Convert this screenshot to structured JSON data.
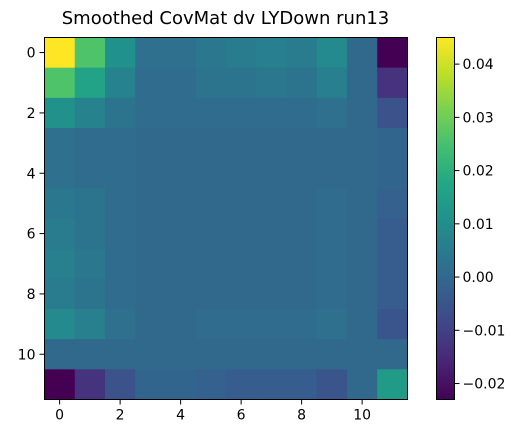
{
  "chart_data": {
    "type": "heatmap",
    "title": "Smoothed CovMat dv LYDown run13",
    "xlabel": "",
    "ylabel": "",
    "x_ticks": [
      "0",
      "2",
      "4",
      "6",
      "8",
      "10"
    ],
    "y_ticks": [
      "0",
      "2",
      "4",
      "6",
      "8",
      "10"
    ],
    "colorbar_ticks": [
      "0.04",
      "0.03",
      "0.02",
      "0.01",
      "0.00",
      "−0.01",
      "−0.02"
    ],
    "colorbar_tick_values": [
      0.04,
      0.03,
      0.02,
      0.01,
      0.0,
      -0.01,
      -0.02
    ],
    "vmin": -0.023,
    "vmax": 0.045,
    "colormap": "viridis",
    "matrix": [
      [
        0.045,
        0.026,
        0.011,
        0.002,
        0.002,
        0.004,
        0.005,
        0.006,
        0.005,
        0.009,
        0.0,
        -0.023
      ],
      [
        0.026,
        0.016,
        0.007,
        0.001,
        0.001,
        0.003,
        0.003,
        0.004,
        0.003,
        0.006,
        0.0,
        -0.013
      ],
      [
        0.011,
        0.007,
        0.003,
        0.001,
        0.001,
        0.001,
        0.001,
        0.001,
        0.001,
        0.002,
        0.0,
        -0.006
      ],
      [
        0.002,
        0.001,
        0.001,
        0.0,
        0.0,
        0.0,
        0.0,
        0.0,
        0.0,
        0.0,
        0.0,
        -0.001
      ],
      [
        0.002,
        0.001,
        0.001,
        0.0,
        0.0,
        0.0,
        0.0,
        0.0,
        0.0,
        0.0,
        0.0,
        -0.001
      ],
      [
        0.004,
        0.003,
        0.001,
        0.0,
        0.0,
        0.0,
        0.0,
        0.0,
        0.0,
        0.001,
        0.0,
        -0.002
      ],
      [
        0.005,
        0.003,
        0.001,
        0.0,
        0.0,
        0.0,
        0.0,
        0.0,
        0.0,
        0.001,
        0.0,
        -0.003
      ],
      [
        0.006,
        0.004,
        0.001,
        0.0,
        0.0,
        0.0,
        0.0,
        0.0,
        0.0,
        0.001,
        0.0,
        -0.003
      ],
      [
        0.005,
        0.003,
        0.001,
        0.0,
        0.0,
        0.0,
        0.0,
        0.0,
        0.0,
        0.001,
        0.0,
        -0.003
      ],
      [
        0.009,
        0.006,
        0.002,
        0.0,
        0.0,
        0.001,
        0.001,
        0.001,
        0.001,
        0.002,
        0.0,
        -0.005
      ],
      [
        0.0,
        0.0,
        0.0,
        0.0,
        0.0,
        0.0,
        0.0,
        0.0,
        0.0,
        0.0,
        0.0,
        0.0
      ],
      [
        -0.023,
        -0.013,
        -0.006,
        -0.001,
        -0.001,
        -0.002,
        -0.003,
        -0.003,
        -0.003,
        -0.005,
        0.0,
        0.014
      ]
    ]
  }
}
